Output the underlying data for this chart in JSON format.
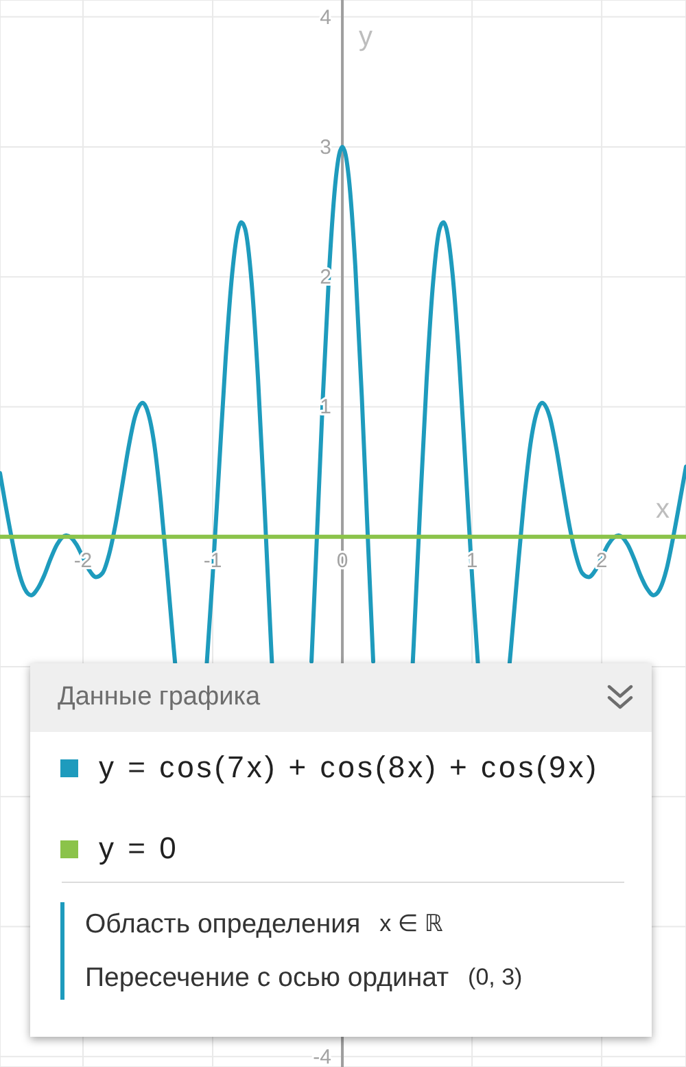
{
  "chart_data": {
    "type": "line",
    "xlabel": "x",
    "ylabel": "y",
    "legend_title": "Данные графика",
    "annotations": [
      "Область определения",
      "x ∈ ℝ",
      "Пересечение с осью ординат",
      "(0, 3)"
    ],
    "xlim": [
      -2.64,
      2.65
    ],
    "ylim": [
      -4.08,
      4.13
    ],
    "xticks": [
      -2,
      -1,
      0,
      1,
      2
    ],
    "yticks": [
      -4,
      {
        "value": -3,
        "label": null
      },
      {
        "value": -2,
        "label": null
      },
      {
        "value": -1,
        "label": null
      },
      1,
      2,
      3,
      4
    ],
    "grid": true,
    "legend": "bottom",
    "marker": "none",
    "series": [
      {
        "name": "y = cos(7x) + cos(8x) + cos(9x)",
        "color": "#1e9bbd",
        "x": [
          -2.64,
          -2.6,
          -2.55,
          -2.5,
          -2.45,
          -2.4,
          -2.35,
          -2.3,
          -2.25,
          -2.2,
          -2.13,
          -2.05,
          -2.0,
          -1.95,
          -1.9,
          -1.85,
          -1.8,
          -1.75,
          -1.7,
          -1.65,
          -1.6,
          -1.54,
          -1.5,
          -1.45,
          -1.4,
          -1.35,
          -1.3,
          -1.29,
          -1.17,
          -1.045,
          -1.0,
          -0.95,
          -0.9,
          -0.85,
          -0.8,
          -0.78,
          -0.75,
          -0.7,
          -0.65,
          -0.6,
          -0.55,
          -0.543,
          -0.39,
          -0.238,
          -0.2,
          -0.15,
          -0.1,
          -0.05,
          -0.025,
          0,
          0.025,
          0.05,
          0.1,
          0.15,
          0.2,
          0.238,
          0.39,
          0.543,
          0.55,
          0.6,
          0.65,
          0.7,
          0.75,
          0.78,
          0.8,
          0.85,
          0.9,
          0.95,
          1.0,
          1.045,
          1.17,
          1.29,
          1.3,
          1.35,
          1.4,
          1.45,
          1.5,
          1.54,
          1.6,
          1.65,
          1.7,
          1.75,
          1.8,
          1.85,
          1.9,
          1.95,
          2.0,
          2.05,
          2.13,
          2.2,
          2.25,
          2.3,
          2.35,
          2.4,
          2.45,
          2.5,
          2.55,
          2.6,
          2.65
        ],
        "values": [
          0.49,
          0.26,
          -0.01,
          -0.25,
          -0.4,
          -0.45,
          -0.4,
          -0.3,
          -0.17,
          -0.06,
          0.01,
          -0.06,
          -0.16,
          -0.26,
          -0.31,
          -0.28,
          -0.14,
          0.09,
          0.38,
          0.68,
          0.92,
          1.03,
          0.96,
          0.71,
          0.27,
          -0.28,
          -0.86,
          -0.97,
          null,
          -0.97,
          -0.3,
          0.54,
          1.37,
          2.02,
          2.38,
          2.42,
          2.37,
          1.96,
          1.21,
          0.23,
          -0.83,
          -0.97,
          null,
          -0.96,
          -0.09,
          1.08,
          2.08,
          2.76,
          2.94,
          3.0,
          2.94,
          2.76,
          2.08,
          1.08,
          -0.09,
          -0.96,
          null,
          -0.97,
          -0.83,
          0.23,
          1.21,
          1.96,
          2.37,
          2.42,
          2.38,
          2.02,
          1.37,
          0.54,
          -0.3,
          -0.97,
          null,
          -0.97,
          -0.86,
          -0.28,
          0.27,
          0.71,
          0.96,
          1.03,
          0.92,
          0.68,
          0.38,
          0.09,
          -0.14,
          -0.28,
          -0.31,
          -0.26,
          -0.16,
          -0.06,
          0.01,
          -0.06,
          -0.17,
          -0.3,
          -0.4,
          -0.45,
          -0.4,
          -0.25,
          -0.01,
          0.26,
          0.54
        ]
      },
      {
        "name": "y = 0",
        "color": "#8bc34a",
        "x": [
          -2.64,
          2.65
        ],
        "values": [
          0,
          0
        ]
      }
    ]
  }
}
